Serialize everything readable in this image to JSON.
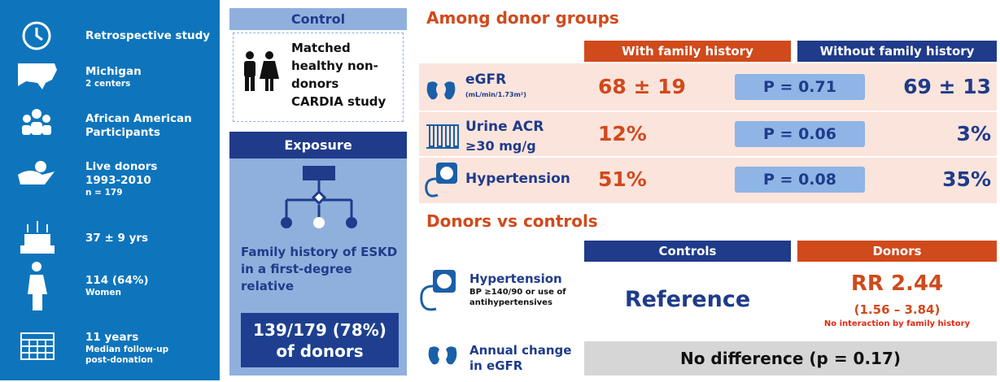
{
  "study": {
    "items": [
      {
        "lines": [
          "Retrospective study"
        ],
        "small": []
      },
      {
        "lines": [
          "Michigan"
        ],
        "small": [
          "2 centers"
        ]
      },
      {
        "lines": [
          "African American",
          "Participants"
        ],
        "small": []
      },
      {
        "lines": [
          "Live donors",
          "1993-2010"
        ],
        "small": [
          "n = 179"
        ]
      },
      {
        "lines": [
          "37 ± 9 yrs"
        ],
        "small": []
      },
      {
        "lines": [
          "114 (64%)"
        ],
        "small": [
          "Women"
        ]
      },
      {
        "lines": [
          "11 years"
        ],
        "small": [
          "Median follow-up",
          "post-donation"
        ]
      }
    ]
  },
  "control": {
    "header": "Control",
    "lines": [
      "Matched",
      "healthy non-",
      "donors",
      "CARDIA study"
    ]
  },
  "exposure": {
    "header": "Exposure",
    "lines": [
      "Family history of ESKD",
      "in a first-degree",
      "relative"
    ],
    "result": [
      "139/179 (78%)",
      "of donors"
    ]
  },
  "donor_groups": {
    "title": "Among donor groups",
    "columns": [
      "With family history",
      "Without family history"
    ],
    "rows": [
      {
        "label": "eGFR",
        "unit": "(mL/min/1.73m²)",
        "with": "68 ± 19",
        "p": "P = 0.71",
        "without": "69 ± 13"
      },
      {
        "label": "Urine ACR",
        "unit": "≥30 mg/g",
        "with": "12%",
        "p": "P = 0.06",
        "without": "3%"
      },
      {
        "label": "Hypertension",
        "unit": null,
        "with": "51%",
        "p": "P = 0.08",
        "without": "35%"
      }
    ]
  },
  "donors_vs_controls": {
    "title": "Donors vs controls",
    "columns": [
      "Controls",
      "Donors"
    ],
    "hypertension": {
      "label": "Hypertension",
      "detail": [
        "BP ≥140/90 or use of",
        "antihypertensives"
      ],
      "controls": "Reference",
      "rr": "RR 2.44",
      "ci": "(1.56 – 3.84)",
      "note": "No interaction by family history"
    },
    "egfr": {
      "label": [
        "Annual change",
        "in eGFR"
      ],
      "result": "No difference (p = 0.17)"
    }
  }
}
